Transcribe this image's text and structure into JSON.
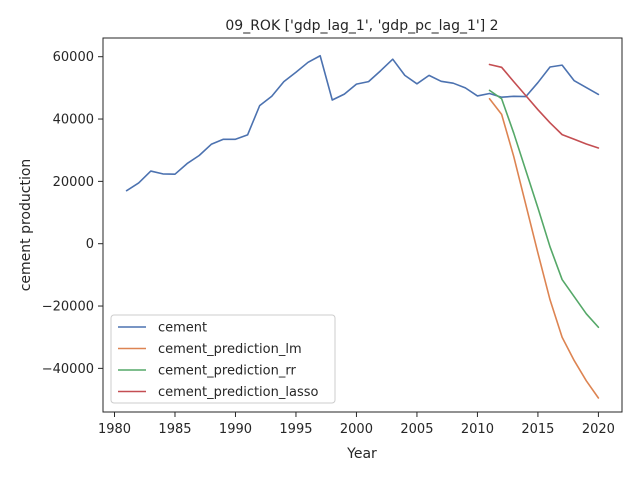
{
  "chart_data": {
    "type": "line",
    "title": "09_ROK ['gdp_lag_1', 'gdp_pc_lag_1'] 2",
    "xlabel": "Year",
    "ylabel": "cement production",
    "xlim": [
      1979.05,
      2021.95
    ],
    "ylim": [
      -54000,
      66000
    ],
    "xticks": [
      1980,
      1985,
      1990,
      1995,
      2000,
      2005,
      2010,
      2015,
      2020
    ],
    "yticks": [
      -40000,
      -20000,
      0,
      20000,
      40000,
      60000
    ],
    "xtick_labels": [
      "1980",
      "1985",
      "1990",
      "1995",
      "2000",
      "2005",
      "2010",
      "2015",
      "2020"
    ],
    "ytick_labels": [
      "−40000",
      "−20000",
      "0",
      "20000",
      "40000",
      "60000"
    ],
    "grid": false,
    "legend_position": "lower-left",
    "series": [
      {
        "name": "cement",
        "color": "#4c72b0",
        "x": [
          1981,
          1982,
          1983,
          1984,
          1985,
          1986,
          1987,
          1988,
          1989,
          1990,
          1991,
          1992,
          1993,
          1994,
          1995,
          1996,
          1997,
          1998,
          1999,
          2000,
          2001,
          2002,
          2003,
          2004,
          2005,
          2006,
          2007,
          2008,
          2009,
          2010,
          2011,
          2012,
          2013,
          2014,
          2015,
          2016,
          2017,
          2018,
          2019,
          2020
        ],
        "y": [
          17000,
          19500,
          23300,
          22400,
          22300,
          25700,
          28300,
          31900,
          33500,
          33500,
          34900,
          44300,
          47300,
          52000,
          55000,
          58200,
          60300,
          46100,
          48000,
          51200,
          52000,
          55500,
          59200,
          54000,
          51300,
          54000,
          52100,
          51500,
          50000,
          47400,
          48200,
          47000,
          47300,
          47200,
          51700,
          56700,
          57300,
          52300,
          50100,
          47900
        ]
      },
      {
        "name": "cement_prediction_lm",
        "color": "#dd8452",
        "x": [
          2011,
          2012,
          2013,
          2014,
          2015,
          2016,
          2017,
          2018,
          2019,
          2020
        ],
        "y": [
          46500,
          41500,
          28000,
          12500,
          -3000,
          -18000,
          -30000,
          -37500,
          -44000,
          -49500
        ]
      },
      {
        "name": "cement_prediction_rr",
        "color": "#55a868",
        "x": [
          2011,
          2012,
          2013,
          2014,
          2015,
          2016,
          2017,
          2018,
          2019,
          2020
        ],
        "y": [
          49200,
          46500,
          35500,
          23500,
          11500,
          -1000,
          -11500,
          -17000,
          -22500,
          -26800
        ]
      },
      {
        "name": "cement_prediction_lasso",
        "color": "#c44e52",
        "x": [
          2011,
          2012,
          2013,
          2014,
          2015,
          2016,
          2017,
          2018,
          2019,
          2020
        ],
        "y": [
          57500,
          56600,
          52000,
          47500,
          43000,
          38800,
          35000,
          33500,
          32000,
          30700
        ]
      }
    ]
  }
}
